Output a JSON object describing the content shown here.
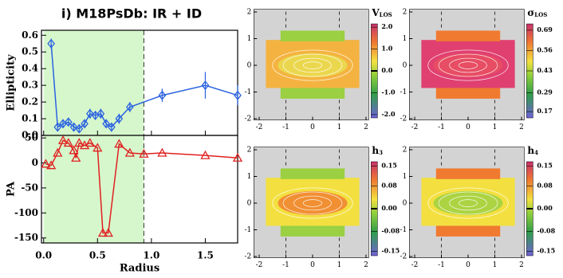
{
  "chart_data": [
    {
      "type": "line",
      "title": "i) M18PsDb: IR + ID",
      "ylabel": "Ellipticity",
      "x": [
        0.07,
        0.13,
        0.18,
        0.23,
        0.28,
        0.33,
        0.38,
        0.43,
        0.48,
        0.53,
        0.58,
        0.63,
        0.7,
        0.8,
        1.1,
        1.5,
        1.8
      ],
      "series": [
        {
          "color": "#2a62e0",
          "marker": "diamond",
          "values": [
            0.55,
            0.05,
            0.07,
            0.08,
            0.05,
            0.04,
            0.07,
            0.13,
            0.12,
            0.13,
            0.07,
            0.05,
            0.1,
            0.17,
            0.24,
            0.3,
            0.24
          ],
          "errors": [
            0.03,
            0.02,
            0.02,
            0.02,
            0.02,
            0.02,
            0.02,
            0.03,
            0.02,
            0.03,
            0.02,
            0.02,
            0.03,
            0.03,
            0.04,
            0.08,
            0.06
          ]
        }
      ],
      "xlim": [
        -0.02,
        1.8
      ],
      "ylim": [
        0,
        0.63
      ],
      "xticks": [
        0,
        0.5,
        1,
        1.5
      ],
      "yticks": [
        {
          "value": 0,
          "label": "0.0"
        },
        0.1,
        0.2,
        0.3,
        0.4,
        0.5,
        0.6
      ],
      "shade": [
        0,
        0.93
      ],
      "shade_color": "#d6f7cc",
      "vline": 0.93
    },
    {
      "type": "line",
      "ylabel": "PA",
      "xlabel": "Radius",
      "x": [
        0.02,
        0.07,
        0.13,
        0.18,
        0.23,
        0.28,
        0.3,
        0.33,
        0.38,
        0.43,
        0.5,
        0.55,
        0.6,
        0.7,
        0.8,
        0.93,
        1.1,
        1.5,
        1.8
      ],
      "series": [
        {
          "color": "#e02020",
          "marker": "triangle",
          "values": [
            -2,
            -5,
            20,
            45,
            40,
            25,
            10,
            40,
            35,
            40,
            30,
            -140,
            -140,
            38,
            20,
            18,
            20,
            15,
            10
          ]
        }
      ],
      "xlim": [
        -0.02,
        1.8
      ],
      "ylim": [
        -160,
        55
      ],
      "xticks": [
        {
          "value": 0,
          "label": "0.0"
        },
        0.5,
        {
          "value": 1,
          "label": "1.0"
        },
        1.5
      ],
      "yticks": [
        -150,
        -100,
        -50,
        0,
        50
      ],
      "shade": [
        0,
        0.93
      ],
      "shade_color": "#d6f7cc",
      "vline": 0.93
    },
    {
      "type": "map",
      "label": "V",
      "label_sub": "LOS",
      "clim": [
        -2.15,
        2.15
      ],
      "cbar_ticks": [
        {
          "value": 2,
          "label": "2.0"
        },
        {
          "value": 1,
          "label": "1.0"
        },
        {
          "value": 0,
          "label": "0.0"
        },
        {
          "value": -1,
          "label": "-1.0"
        },
        {
          "value": -2,
          "label": "-2.0"
        }
      ],
      "xlim": [
        -2.2,
        2.1
      ],
      "ylim": [
        -2.05,
        2.1
      ],
      "xticks": [
        -2,
        -1,
        0,
        1,
        2
      ],
      "yticks": [
        -2,
        -1,
        0,
        1,
        2
      ],
      "vlines": [
        -1,
        1
      ]
    },
    {
      "type": "map",
      "label": "σ",
      "label_sub": "LOS",
      "clim": [
        0.13,
        0.73
      ],
      "cbar_ticks": [
        0.69,
        0.56,
        0.43,
        0.29,
        0.17
      ],
      "xlim": [
        -2.2,
        2.1
      ],
      "ylim": [
        -2.05,
        2.1
      ],
      "xticks": [
        -2,
        -1,
        0,
        1,
        2
      ],
      "yticks": [
        -2,
        -1,
        0,
        1,
        2
      ],
      "vlines": [
        -1,
        1
      ]
    },
    {
      "type": "map",
      "label": "h",
      "label_sub": "3",
      "clim": [
        -0.165,
        0.165
      ],
      "cbar_ticks": [
        0.15,
        0.08,
        {
          "value": 0,
          "label": "0.00"
        },
        -0.08,
        -0.15
      ],
      "xlim": [
        -2.2,
        2.1
      ],
      "ylim": [
        -2.05,
        2.1
      ],
      "xticks": [
        -2,
        -1,
        0,
        1,
        2
      ],
      "yticks": [
        -2,
        -1,
        0,
        1,
        2
      ],
      "vlines": [
        -1,
        1
      ]
    },
    {
      "type": "map",
      "label": "h",
      "label_sub": "4",
      "clim": [
        -0.165,
        0.165
      ],
      "cbar_ticks": [
        0.15,
        0.08,
        {
          "value": 0,
          "label": "0.00"
        },
        -0.08,
        -0.15
      ],
      "xlim": [
        -2.2,
        2.1
      ],
      "ylim": [
        -2.05,
        2.1
      ],
      "xticks": [
        -2,
        -1,
        0,
        1,
        2
      ],
      "yticks": [
        -2,
        -1,
        0,
        1,
        2
      ],
      "vlines": [
        -1,
        1
      ]
    }
  ]
}
